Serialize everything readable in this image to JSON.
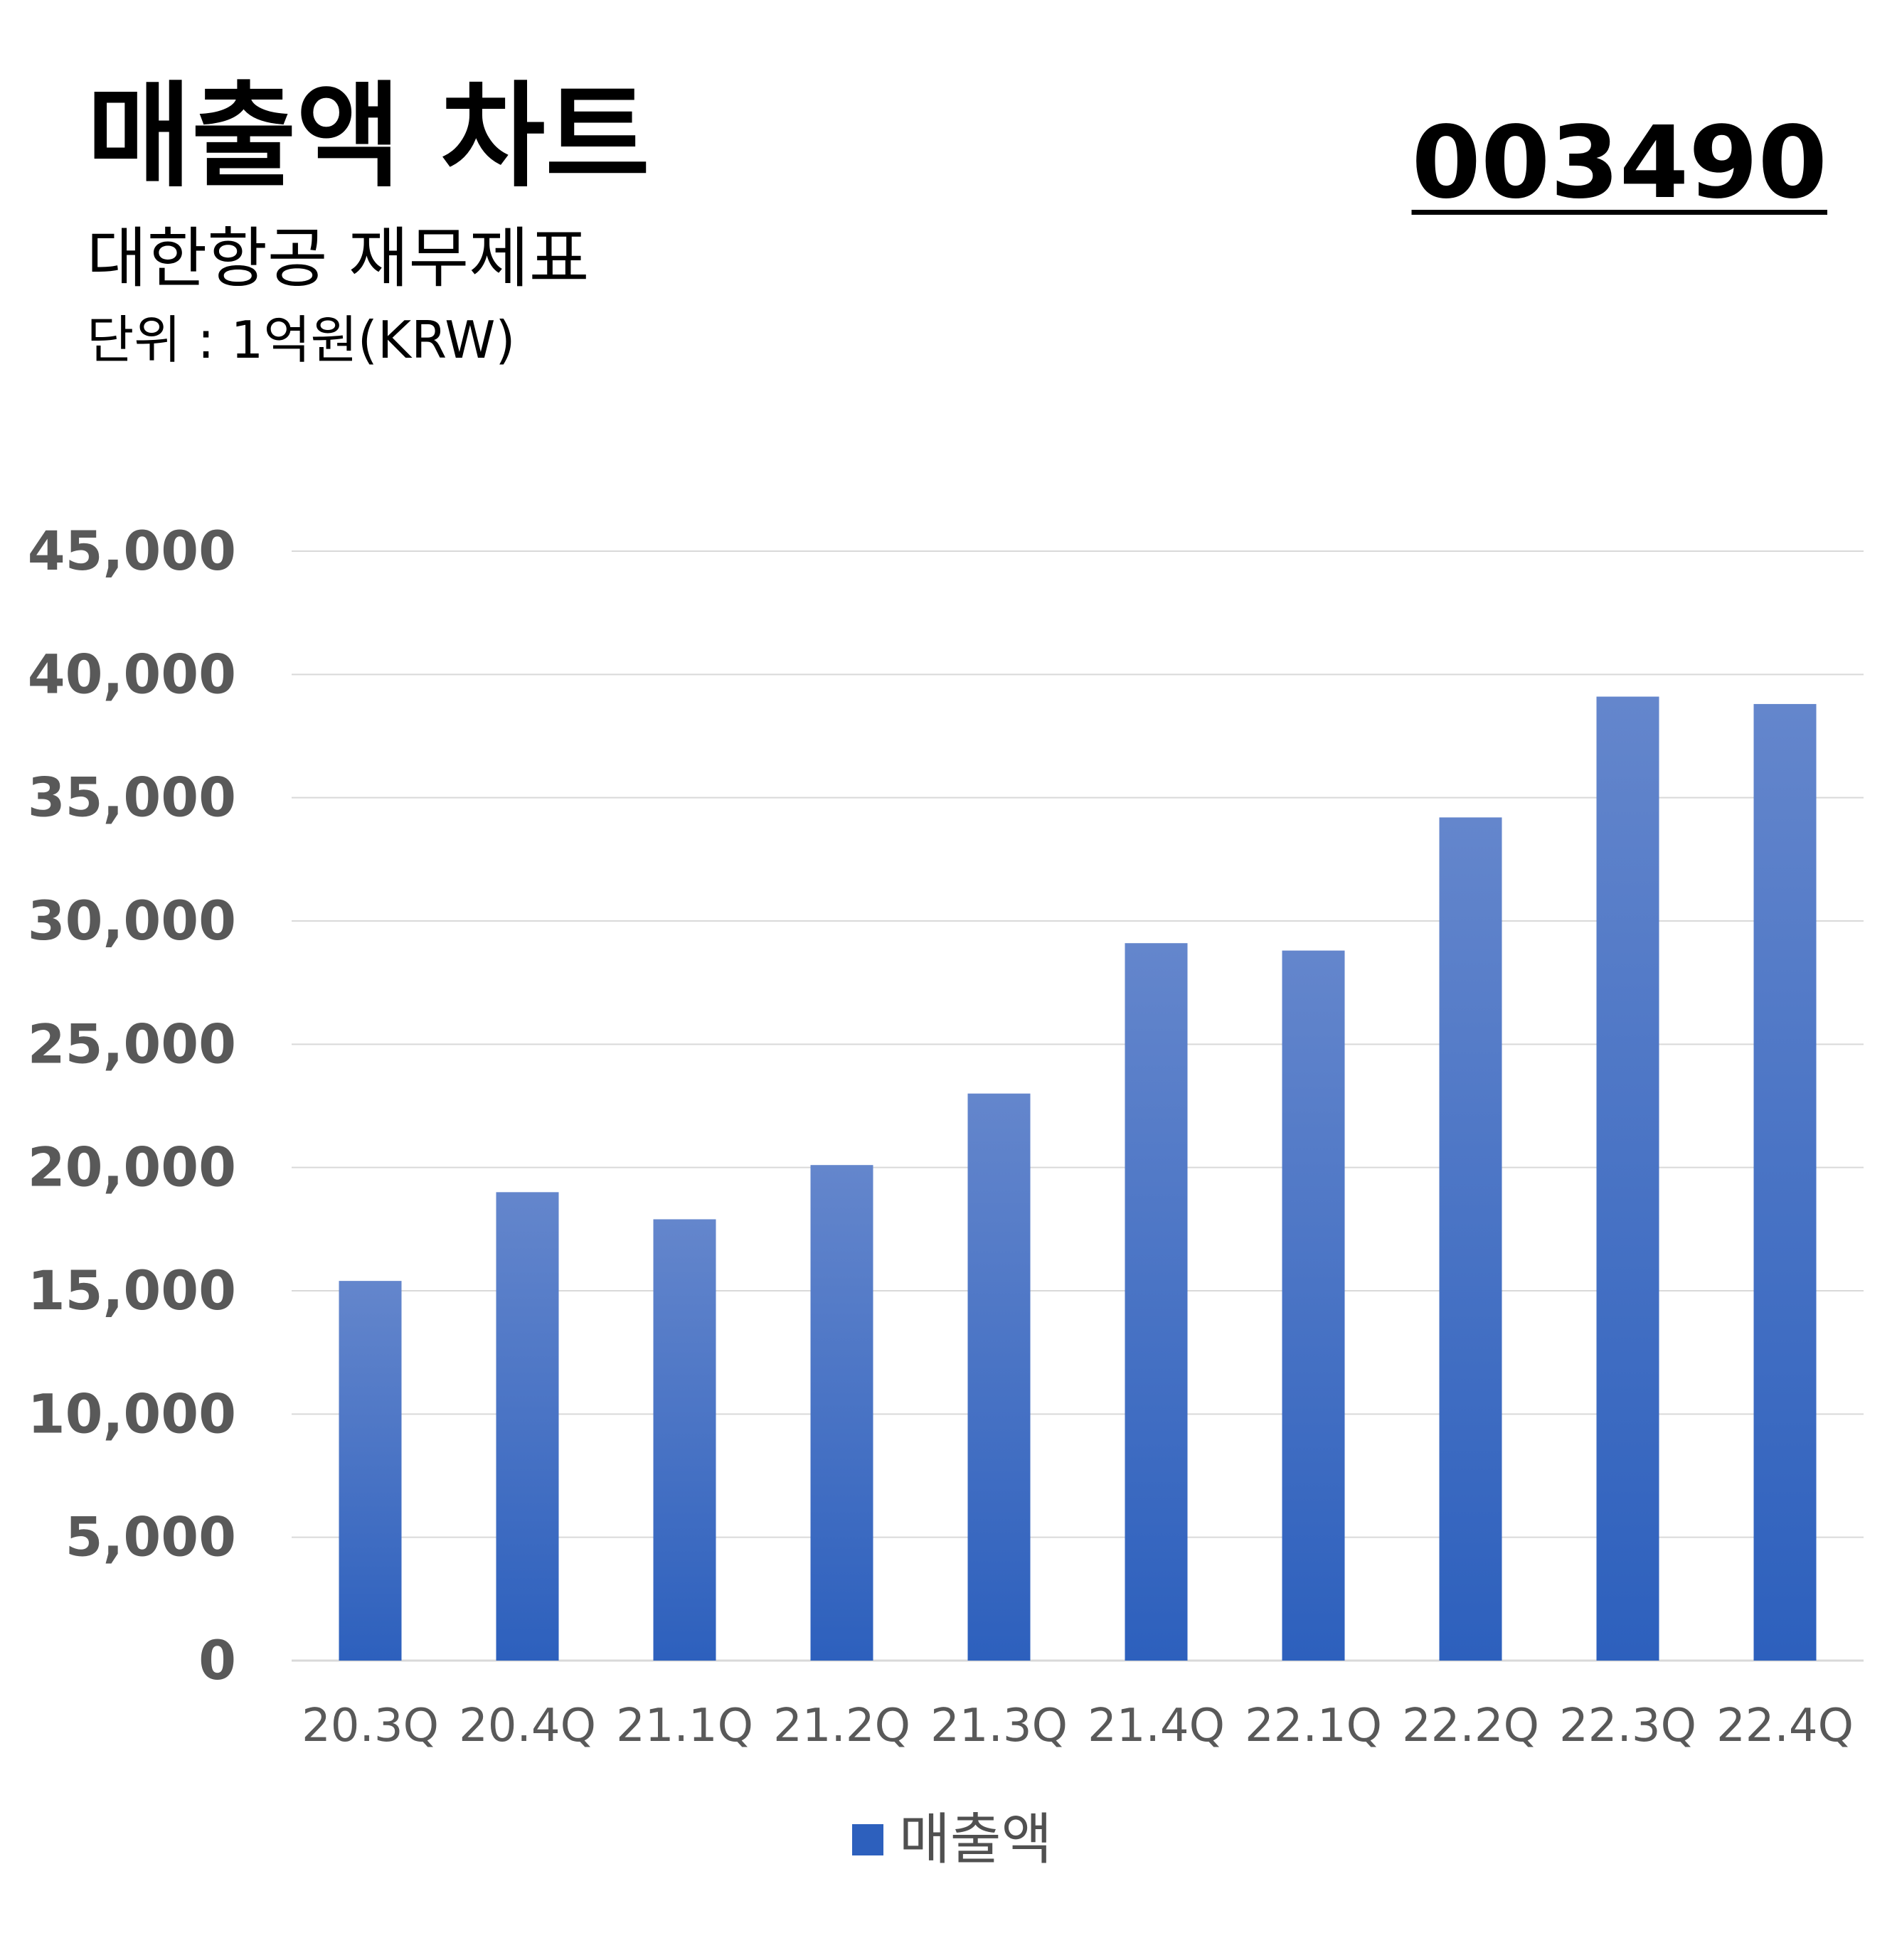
{
  "header": {
    "title": "매출액 차트",
    "ticker": "003490",
    "subtitle": "대한항공 재무제표",
    "unit": "단위 : 1억원(KRW)"
  },
  "colors": {
    "bar_top": "#6486cc",
    "bar_bottom": "#2d60bd",
    "grid": "#d9d9d9",
    "tick_text": "#595959"
  },
  "chart_data": {
    "type": "bar",
    "categories": [
      "20.3Q",
      "20.4Q",
      "21.1Q",
      "21.2Q",
      "21.3Q",
      "21.4Q",
      "22.1Q",
      "22.2Q",
      "22.3Q",
      "22.4Q"
    ],
    "series": [
      {
        "name": "매출액",
        "values": [
          15400,
          19000,
          17900,
          20100,
          23000,
          29100,
          28800,
          34200,
          39100,
          38800
        ]
      }
    ],
    "y_ticks": [
      "0",
      "5,000",
      "10,000",
      "15,000",
      "20,000",
      "25,000",
      "30,000",
      "35,000",
      "40,000",
      "45,000"
    ],
    "ylim": [
      0,
      45000
    ],
    "grid": true,
    "legend_position": "bottom"
  }
}
